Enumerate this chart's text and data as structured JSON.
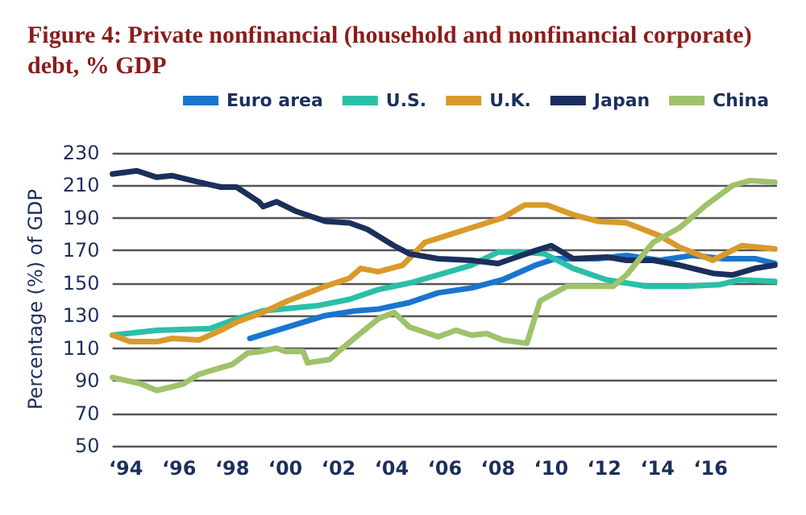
{
  "chart_data": {
    "type": "line",
    "title": "Figure 4: Private nonfinancial (household and nonfinancial corporate) debt, % GDP",
    "ylabel": "Percentage (%) of GDP",
    "legend": "top",
    "grid": "y",
    "marker": "none",
    "line_style": "solid",
    "xlim": [
      "1993-07",
      "2018-07"
    ],
    "ylim": [
      50,
      230
    ],
    "yticks": [
      50,
      70,
      90,
      110,
      130,
      150,
      170,
      190,
      210,
      230
    ],
    "xticks": [
      {
        "value": "1994",
        "label": "‘94"
      },
      {
        "value": "1996",
        "label": "‘96"
      },
      {
        "value": "1998",
        "label": "‘98"
      },
      {
        "value": "2000",
        "label": "‘00"
      },
      {
        "value": "2002",
        "label": "‘02"
      },
      {
        "value": "2004",
        "label": "‘04"
      },
      {
        "value": "2006",
        "label": "‘06"
      },
      {
        "value": "2008",
        "label": "‘08"
      },
      {
        "value": "2010",
        "label": "‘10"
      },
      {
        "value": "2012",
        "label": "‘12"
      },
      {
        "value": "2014",
        "label": "‘14"
      },
      {
        "value": "2016",
        "label": "‘16"
      }
    ],
    "series": [
      {
        "name": "Euro area",
        "color": "#1a75cf",
        "x": [
          "1998-09",
          "2000-02",
          "2001-07",
          "2002-09",
          "2003-07",
          "2004-09",
          "2005-10",
          "2007-01",
          "2008-03",
          "2009-06",
          "2010-03",
          "2011-10",
          "2012-11",
          "2014-02",
          "2015-05",
          "2016-07",
          "2017-09",
          "2018-06"
        ],
        "values": [
          116,
          123,
          130,
          133,
          134,
          138,
          144,
          147,
          152,
          161,
          165,
          165,
          167,
          164,
          167,
          165,
          165,
          162
        ]
      },
      {
        "name": "U.S.",
        "color": "#2bbfa8",
        "x": [
          "1993-07",
          "1995-03",
          "1997-03",
          "1998-03",
          "1999-03",
          "2001-03",
          "2002-06",
          "2003-07",
          "2004-09",
          "2005-10",
          "2007-01",
          "2008-01",
          "2008-11",
          "2009-10",
          "2010-11",
          "2012-02",
          "2013-08",
          "2015-02",
          "2016-05",
          "2017-02",
          "2018-06"
        ],
        "values": [
          118,
          121,
          122,
          128,
          133,
          136,
          140,
          146,
          150,
          155,
          161,
          169,
          169,
          168,
          159,
          152,
          148,
          148,
          149,
          152,
          151
        ]
      },
      {
        "name": "U.K.",
        "color": "#d99a2b",
        "x": [
          "1993-07",
          "1994-03",
          "1995-03",
          "1995-10",
          "1996-10",
          "1997-08",
          "1998-03",
          "1999-03",
          "2000-02",
          "2001-07",
          "2002-06",
          "2002-11",
          "2003-07",
          "2004-06",
          "2005-04",
          "2006-06",
          "2007-01",
          "2008-03",
          "2009-01",
          "2009-11",
          "2010-11",
          "2011-10",
          "2012-11",
          "2014-02",
          "2014-11",
          "2016-02",
          "2017-03",
          "2018-06"
        ],
        "values": [
          118,
          114,
          114,
          116,
          115,
          121,
          126,
          132,
          139,
          148,
          153,
          159,
          157,
          161,
          175,
          181,
          184,
          190,
          198,
          198,
          192,
          188,
          187,
          179,
          172,
          164,
          173,
          171
        ]
      },
      {
        "name": "Japan",
        "color": "#1b2f5c",
        "x": [
          "1993-07",
          "1994-06",
          "1995-03",
          "1995-10",
          "1996-10",
          "1997-08",
          "1998-03",
          "1999-01",
          "1999-03",
          "1999-09",
          "2000-06",
          "2001-07",
          "2002-06",
          "2003-02",
          "2004-02",
          "2004-09",
          "2005-10",
          "2007-01",
          "2008-01",
          "2009-06",
          "2010-01",
          "2010-11",
          "2012-02",
          "2012-11",
          "2013-11",
          "2014-11",
          "2016-02",
          "2016-11",
          "2017-09",
          "2018-06"
        ],
        "values": [
          217,
          219,
          215,
          216,
          212,
          209,
          209,
          200,
          197,
          200,
          194,
          188,
          187,
          183,
          173,
          168,
          165,
          164,
          162,
          170,
          173,
          165,
          166,
          164,
          164,
          161,
          156,
          155,
          159,
          161
        ]
      },
      {
        "name": "China",
        "color": "#9fc26b",
        "x": [
          "1993-07",
          "1994-08",
          "1995-03",
          "1996-03",
          "1996-10",
          "1997-08",
          "1998-01",
          "1998-08",
          "1999-02",
          "1999-09",
          "2000-01",
          "2000-09",
          "2000-11",
          "2001-09",
          "2002-01",
          "2002-09",
          "2003-07",
          "2004-02",
          "2004-09",
          "2005-10",
          "2006-06",
          "2007-01",
          "2007-08",
          "2008-03",
          "2009-02",
          "2009-08",
          "2010-08",
          "2011-10",
          "2012-05",
          "2012-11",
          "2013-11",
          "2014-11",
          "2015-11",
          "2016-11",
          "2017-07",
          "2018-06"
        ],
        "values": [
          92,
          88,
          84,
          88,
          94,
          98,
          100,
          107,
          108,
          110,
          108,
          108,
          101,
          103,
          108,
          117,
          128,
          132,
          123,
          117,
          121,
          118,
          119,
          115,
          113,
          139,
          148,
          148,
          148,
          155,
          175,
          184,
          198,
          210,
          213,
          212
        ]
      }
    ]
  }
}
